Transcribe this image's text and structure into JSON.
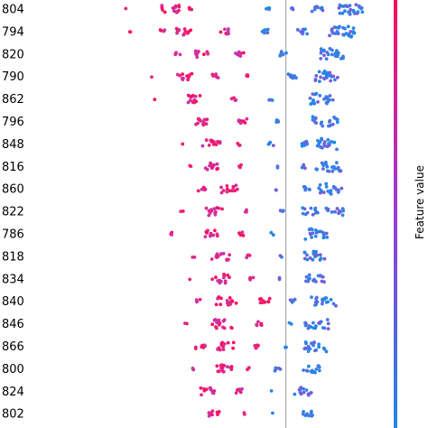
{
  "chart_data": {
    "type": "scatter",
    "subtype": "beeswarm",
    "categories": [
      "804",
      "794",
      "820",
      "790",
      "862",
      "796",
      "848",
      "816",
      "860",
      "822",
      "786",
      "818",
      "834",
      "840",
      "846",
      "866",
      "800",
      "824",
      "802"
    ],
    "xlim": [
      -1.0,
      0.5
    ],
    "baseline_x": 0.0,
    "colorbar": {
      "label": "Feature value",
      "low_color": "#1e88e5",
      "high_color": "#ff0d57"
    },
    "rows": [
      {
        "name": "804",
        "clusters": [
          {
            "x": -0.86,
            "n": 1,
            "hi": true
          },
          {
            "x": -0.62,
            "n": 14,
            "hi": true
          },
          {
            "x": -0.52,
            "n": 6,
            "hi": true
          },
          {
            "x": -0.1,
            "n": 4,
            "hi": false
          },
          {
            "x": 0.04,
            "n": 3,
            "hi": false
          },
          {
            "x": 0.17,
            "n": 10,
            "hi": false
          },
          {
            "x": 0.35,
            "n": 26,
            "hi": false
          }
        ]
      },
      {
        "name": "794",
        "clusters": [
          {
            "x": -0.83,
            "n": 2,
            "hi": true
          },
          {
            "x": -0.66,
            "n": 4,
            "hi": true
          },
          {
            "x": -0.55,
            "n": 12,
            "hi": true
          },
          {
            "x": -0.33,
            "n": 7,
            "hi": true
          },
          {
            "x": -0.11,
            "n": 6,
            "hi": false
          },
          {
            "x": 0.09,
            "n": 8,
            "hi": false
          },
          {
            "x": 0.3,
            "n": 28,
            "hi": false
          }
        ]
      },
      {
        "name": "820",
        "clusters": [
          {
            "x": -0.58,
            "n": 4,
            "hi": true
          },
          {
            "x": -0.45,
            "n": 10,
            "hi": true
          },
          {
            "x": -0.25,
            "n": 8,
            "hi": true
          },
          {
            "x": -0.02,
            "n": 7,
            "hi": false
          },
          {
            "x": 0.25,
            "n": 24,
            "hi": false
          }
        ]
      },
      {
        "name": "790",
        "clusters": [
          {
            "x": -0.71,
            "n": 1,
            "hi": true
          },
          {
            "x": -0.54,
            "n": 12,
            "hi": true
          },
          {
            "x": -0.38,
            "n": 6,
            "hi": true
          },
          {
            "x": -0.2,
            "n": 4,
            "hi": true
          },
          {
            "x": 0.03,
            "n": 8,
            "hi": false
          },
          {
            "x": 0.22,
            "n": 24,
            "hi": false
          }
        ]
      },
      {
        "name": "862",
        "clusters": [
          {
            "x": -0.71,
            "n": 1,
            "hi": true
          },
          {
            "x": -0.48,
            "n": 14,
            "hi": true
          },
          {
            "x": -0.28,
            "n": 4,
            "hi": true
          },
          {
            "x": -0.08,
            "n": 3,
            "hi": false
          },
          {
            "x": 0.19,
            "n": 22,
            "hi": false
          }
        ]
      },
      {
        "name": "796",
        "clusters": [
          {
            "x": -0.46,
            "n": 12,
            "hi": true
          },
          {
            "x": -0.24,
            "n": 9,
            "hi": true
          },
          {
            "x": -0.04,
            "n": 4,
            "hi": false
          },
          {
            "x": 0.21,
            "n": 20,
            "hi": false
          }
        ]
      },
      {
        "name": "848",
        "clusters": [
          {
            "x": -0.55,
            "n": 1,
            "hi": true
          },
          {
            "x": -0.4,
            "n": 14,
            "hi": true
          },
          {
            "x": -0.25,
            "n": 3,
            "hi": true
          },
          {
            "x": -0.08,
            "n": 4,
            "hi": false
          },
          {
            "x": 0.1,
            "n": 8,
            "hi": false
          },
          {
            "x": 0.23,
            "n": 20,
            "hi": false
          }
        ]
      },
      {
        "name": "816",
        "clusters": [
          {
            "x": -0.51,
            "n": 2,
            "hi": true
          },
          {
            "x": -0.39,
            "n": 12,
            "hi": true
          },
          {
            "x": -0.25,
            "n": 3,
            "hi": true
          },
          {
            "x": -0.05,
            "n": 2,
            "hi": false
          },
          {
            "x": 0.09,
            "n": 4,
            "hi": false
          },
          {
            "x": 0.23,
            "n": 22,
            "hi": false
          }
        ]
      },
      {
        "name": "860",
        "clusters": [
          {
            "x": -0.45,
            "n": 6,
            "hi": true
          },
          {
            "x": -0.3,
            "n": 14,
            "hi": true
          },
          {
            "x": -0.06,
            "n": 2,
            "hi": false
          },
          {
            "x": 0.11,
            "n": 6,
            "hi": false
          },
          {
            "x": 0.24,
            "n": 20,
            "hi": false
          }
        ]
      },
      {
        "name": "822",
        "clusters": [
          {
            "x": -0.56,
            "n": 2,
            "hi": true
          },
          {
            "x": -0.38,
            "n": 14,
            "hi": true
          },
          {
            "x": -0.22,
            "n": 3,
            "hi": true
          },
          {
            "x": -0.02,
            "n": 3,
            "hi": false
          },
          {
            "x": 0.13,
            "n": 12,
            "hi": false
          },
          {
            "x": 0.26,
            "n": 14,
            "hi": false
          }
        ]
      },
      {
        "name": "786",
        "clusters": [
          {
            "x": -0.62,
            "n": 3,
            "hi": true
          },
          {
            "x": -0.4,
            "n": 12,
            "hi": true
          },
          {
            "x": -0.24,
            "n": 4,
            "hi": true
          },
          {
            "x": -0.07,
            "n": 2,
            "hi": false
          },
          {
            "x": 0.17,
            "n": 20,
            "hi": false
          }
        ]
      },
      {
        "name": "818",
        "clusters": [
          {
            "x": -0.5,
            "n": 2,
            "hi": true
          },
          {
            "x": -0.35,
            "n": 14,
            "hi": true
          },
          {
            "x": -0.2,
            "n": 4,
            "hi": true
          },
          {
            "x": -0.03,
            "n": 2,
            "hi": false
          },
          {
            "x": 0.16,
            "n": 18,
            "hi": false
          }
        ]
      },
      {
        "name": "834",
        "clusters": [
          {
            "x": -0.52,
            "n": 1,
            "hi": true
          },
          {
            "x": -0.35,
            "n": 16,
            "hi": true
          },
          {
            "x": -0.18,
            "n": 4,
            "hi": true
          },
          {
            "x": -0.04,
            "n": 2,
            "hi": false
          },
          {
            "x": 0.16,
            "n": 16,
            "hi": false
          }
        ]
      },
      {
        "name": "840",
        "clusters": [
          {
            "x": -0.47,
            "n": 4,
            "hi": true
          },
          {
            "x": -0.32,
            "n": 16,
            "hi": true
          },
          {
            "x": -0.12,
            "n": 10,
            "hi": true
          },
          {
            "x": 0.04,
            "n": 6,
            "hi": false
          },
          {
            "x": 0.2,
            "n": 20,
            "hi": false
          }
        ]
      },
      {
        "name": "846",
        "clusters": [
          {
            "x": -0.54,
            "n": 2,
            "hi": true
          },
          {
            "x": -0.34,
            "n": 16,
            "hi": true
          },
          {
            "x": -0.15,
            "n": 6,
            "hi": true
          },
          {
            "x": 0.02,
            "n": 2,
            "hi": false
          },
          {
            "x": 0.16,
            "n": 20,
            "hi": false
          }
        ]
      },
      {
        "name": "866",
        "clusters": [
          {
            "x": -0.46,
            "n": 8,
            "hi": true
          },
          {
            "x": -0.32,
            "n": 14,
            "hi": true
          },
          {
            "x": -0.16,
            "n": 5,
            "hi": true
          },
          {
            "x": 0.0,
            "n": 2,
            "hi": false
          },
          {
            "x": 0.15,
            "n": 20,
            "hi": false
          }
        ]
      },
      {
        "name": "800",
        "clusters": [
          {
            "x": -0.5,
            "n": 2,
            "hi": true
          },
          {
            "x": -0.33,
            "n": 14,
            "hi": true
          },
          {
            "x": -0.2,
            "n": 2,
            "hi": true
          },
          {
            "x": -0.05,
            "n": 6,
            "hi": false
          },
          {
            "x": 0.14,
            "n": 14,
            "hi": false
          }
        ]
      },
      {
        "name": "824",
        "clusters": [
          {
            "x": -0.42,
            "n": 12,
            "hi": true
          },
          {
            "x": -0.25,
            "n": 6,
            "hi": true
          },
          {
            "x": -0.07,
            "n": 1,
            "hi": false
          },
          {
            "x": 0.09,
            "n": 14,
            "hi": false
          }
        ]
      },
      {
        "name": "802",
        "clusters": [
          {
            "x": -0.38,
            "n": 10,
            "hi": true
          },
          {
            "x": -0.22,
            "n": 2,
            "hi": true
          },
          {
            "x": -0.08,
            "n": 1,
            "hi": false
          },
          {
            "x": 0.11,
            "n": 10,
            "hi": false
          }
        ]
      }
    ]
  }
}
